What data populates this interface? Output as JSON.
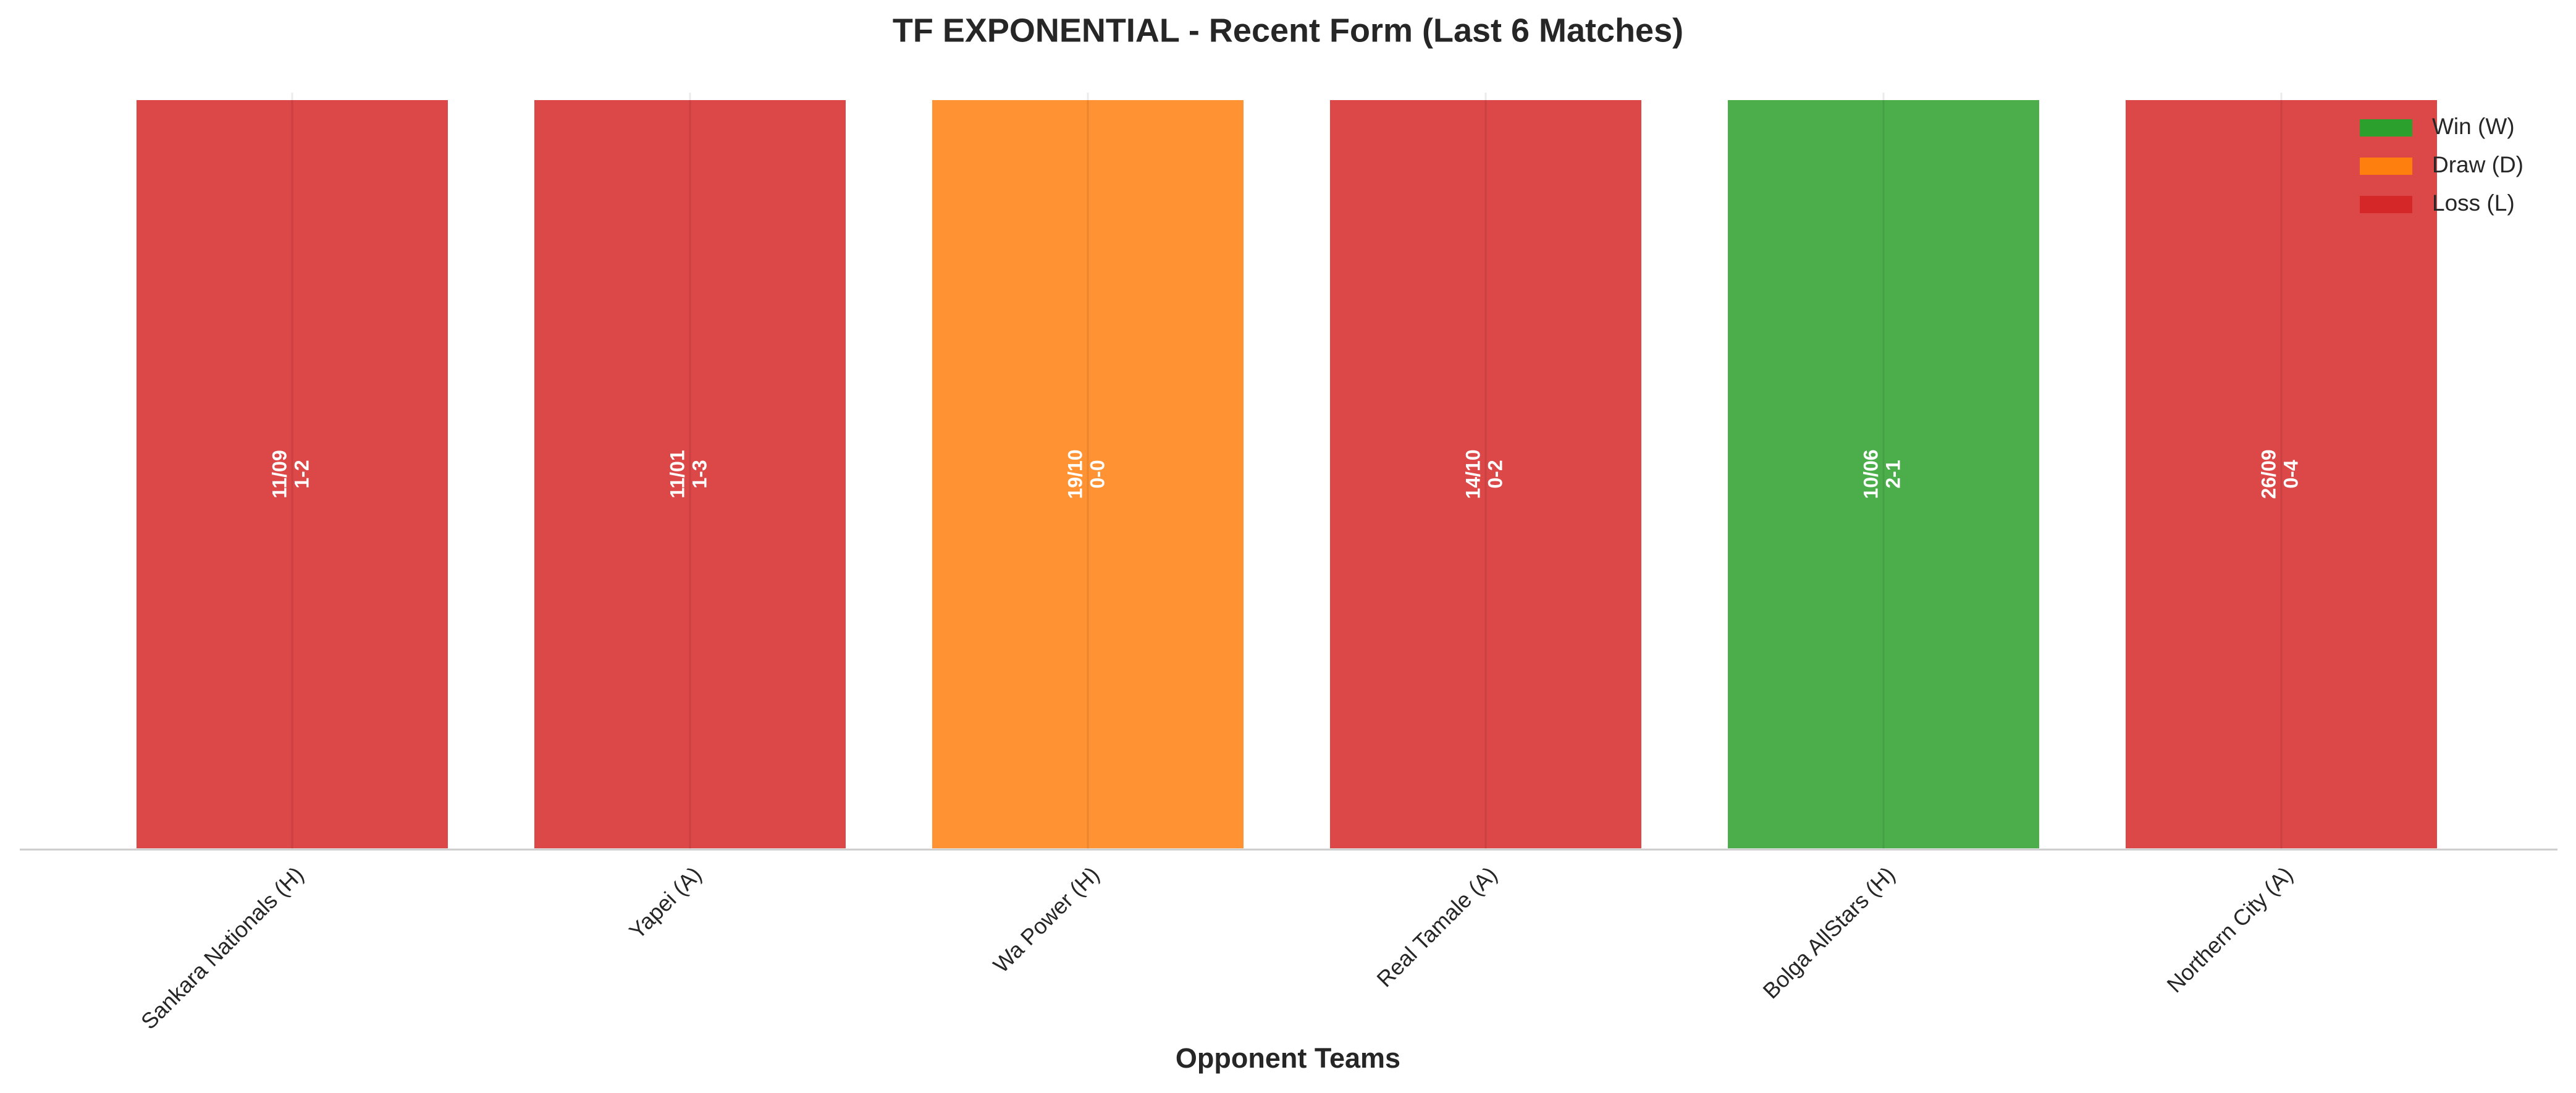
{
  "chart_data": {
    "type": "bar",
    "title": "TF EXPONENTIAL - Recent Form (Last 6 Matches)",
    "x_label": "Opponent Teams",
    "categories": [
      "Sankara Nationals (H)",
      "Yapei (A)",
      "Wa Power (H)",
      "Real Tamale (A)",
      "Bolga AllStars (H)",
      "Northern City (A)"
    ],
    "values": [
      1,
      1,
      1,
      1,
      1,
      1
    ],
    "dates": [
      "11/09",
      "11/01",
      "19/10",
      "14/10",
      "10/06",
      "26/09"
    ],
    "scores": [
      "1-2",
      "1-3",
      "0-0",
      "0-2",
      "2-1",
      "0-4"
    ],
    "bar_colors": [
      "#d62728",
      "#d62728",
      "#ff7f0e",
      "#d62728",
      "#2ca02c",
      "#d62728"
    ],
    "ylim": [
      0,
      1
    ],
    "legend": [
      {
        "name": "Win (W)",
        "color": "#2ca02c"
      },
      {
        "name": "Draw (D)",
        "color": "#ff7f0e"
      },
      {
        "name": "Loss (L)",
        "color": "#d62728"
      }
    ],
    "legend_position": "upper right",
    "grid": true
  }
}
